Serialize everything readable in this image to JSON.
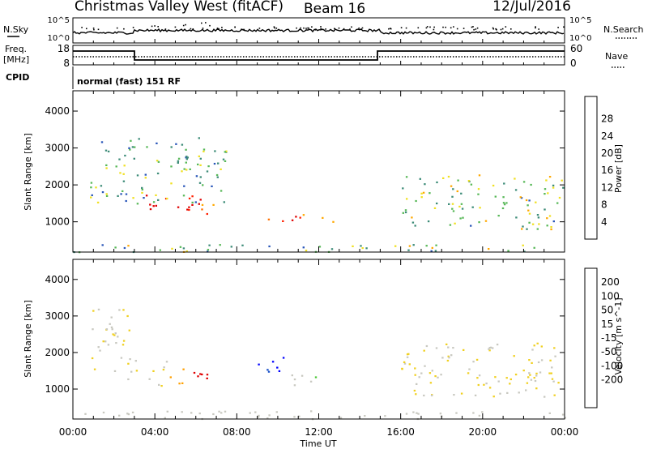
{
  "header": {
    "station": "Christmas Valley West (fitACF)",
    "beam": "Beam 16",
    "date": "12/Jul/2016"
  },
  "status_panel": {
    "nsky_label": "N.Sky",
    "nsky_ticks": [
      "10^5",
      "10^0"
    ],
    "nsearch_label": "N.Search",
    "nsearch_ticks": [
      "10^5",
      "10^0"
    ],
    "freq_label_1": "Freq.",
    "freq_label_2": "[MHz]",
    "freq_ticks": [
      "18",
      "8"
    ],
    "nave_label": "Nave",
    "nave_ticks": [
      "60",
      "0"
    ],
    "cpid_label": "CPID",
    "cpid_text": "normal (fast) 151 RF"
  },
  "palettes": {
    "power": [
      "#0000ff",
      "#2855b8",
      "#3d8c78",
      "#58b858",
      "#f0e020",
      "#ffa800",
      "#ff7000",
      "#ff2000",
      "#e00000"
    ],
    "velocity": [
      "#0000ff",
      "#1850c8",
      "#2f8c50",
      "#4cc838",
      "#c8c8c0",
      "#f0d020",
      "#ffa000",
      "#ff6000",
      "#ff2000",
      "#e00000"
    ]
  },
  "chart_data": [
    {
      "type": "heatmap",
      "name": "power-panel",
      "title": "",
      "xlabel": "Time UT",
      "ylabel": "Slant Range [km]",
      "x_ticks": [
        "00:00",
        "04:00",
        "08:00",
        "12:00",
        "16:00",
        "20:00",
        "00:00"
      ],
      "x_range_hours": [
        0,
        24
      ],
      "y_ticks": [
        "1000",
        "2000",
        "3000",
        "4000"
      ],
      "ylim_km": [
        180,
        4550
      ],
      "colorbar": {
        "label": "Power [dB]",
        "ticks": [
          "4",
          "8",
          "12",
          "16",
          "20",
          "24",
          "28"
        ],
        "range": [
          0,
          30
        ]
      },
      "echo_regions": [
        {
          "t_hours": [
            3.0,
            6.2
          ],
          "range_km": [
            1250,
            1800
          ],
          "level_db": 28
        },
        {
          "t_hours": [
            5.8,
            7.0
          ],
          "range_km": [
            1200,
            1600
          ],
          "level_db": 22
        },
        {
          "t_hours": [
            9.5,
            12.3
          ],
          "range_km": [
            1000,
            1300
          ],
          "level_db": 24
        },
        {
          "t_hours": [
            12.0,
            13.0
          ],
          "range_km": [
            980,
            1120
          ],
          "level_db": 18
        },
        {
          "t_hours": [
            0.8,
            7.5
          ],
          "range_km": [
            1500,
            3300
          ],
          "level_db": 10
        },
        {
          "t_hours": [
            16.0,
            23.9
          ],
          "range_km": [
            800,
            2300
          ],
          "level_db": 12
        },
        {
          "t_hours": [
            0.0,
            24.0
          ],
          "range_km": [
            200,
            420
          ],
          "level_db": 12
        }
      ]
    },
    {
      "type": "heatmap",
      "name": "velocity-panel",
      "title": "",
      "xlabel": "Time UT",
      "ylabel": "Slant Range [km]",
      "x_ticks": [
        "00:00",
        "04:00",
        "08:00",
        "12:00",
        "16:00",
        "20:00",
        "00:00"
      ],
      "x_range_hours": [
        0,
        24
      ],
      "y_ticks": [
        "1000",
        "2000",
        "3000",
        "4000"
      ],
      "ylim_km": [
        180,
        4550
      ],
      "colorbar": {
        "label": "Velocity [m s^-1]",
        "ticks": [
          "200",
          "100",
          "50",
          "15",
          "-15",
          "-50",
          "-100",
          "-200"
        ],
        "range": [
          -250,
          250
        ]
      },
      "echo_regions": [
        {
          "t_hours": [
            5.8,
            7.6
          ],
          "range_km": [
            1200,
            1600
          ],
          "velocity_ms": -220
        },
        {
          "t_hours": [
            4.7,
            5.4
          ],
          "range_km": [
            1050,
            1700
          ],
          "velocity_ms": -70
        },
        {
          "t_hours": [
            9.0,
            10.6
          ],
          "range_km": [
            1400,
            1900
          ],
          "velocity_ms": 210
        },
        {
          "t_hours": [
            10.6,
            12.2
          ],
          "range_km": [
            1050,
            1500
          ],
          "velocity_ms": 45
        },
        {
          "t_hours": [
            2.5,
            4.6
          ],
          "range_km": [
            1100,
            1800
          ],
          "velocity_ms": 0
        },
        {
          "t_hours": [
            0.8,
            2.8
          ],
          "range_km": [
            1500,
            3300
          ],
          "velocity_ms": 0
        },
        {
          "t_hours": [
            16.0,
            23.9
          ],
          "range_km": [
            800,
            2300
          ],
          "velocity_ms": 0
        },
        {
          "t_hours": [
            0.0,
            24.0
          ],
          "range_km": [
            200,
            420
          ],
          "velocity_ms": 20
        }
      ]
    }
  ]
}
